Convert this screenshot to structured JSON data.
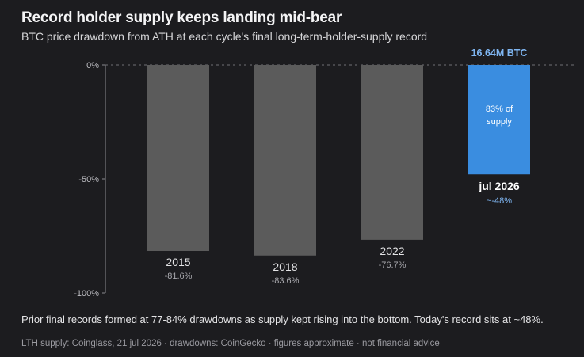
{
  "header": {
    "title": "Record holder supply keeps landing mid-bear",
    "subtitle": "BTC price drawdown from ATH at each cycle's final long-term-holder-supply record"
  },
  "footer": {
    "note": "Prior final records formed at 77-84% drawdowns as supply kept rising into the bottom. Today's record sits at ~48%.",
    "source": "LTH supply: Coinglass, 21 jul 2026 · drawdowns: CoinGecko · figures approximate · not financial advice"
  },
  "colors": {
    "background": "#1c1c1f",
    "historical_bar": "#5b5b5b",
    "current_bar": "#3a8de0",
    "current_label": "#7fb6f2",
    "axis": "#d6d6d8"
  },
  "chart_data": {
    "type": "bar",
    "categories": [
      "2015",
      "2018",
      "2022",
      "jul 2026"
    ],
    "values": [
      -81.6,
      -83.6,
      -76.7,
      -48
    ],
    "value_labels": [
      "-81.6%",
      "-83.6%",
      "-76.7%",
      "~-48%"
    ],
    "highlight_index": 3,
    "highlight_top_label": "16.64M BTC",
    "highlight_inner_label": [
      "83% of",
      "supply"
    ],
    "y_ticks": [
      0,
      -50,
      -100
    ],
    "y_tick_labels": [
      "0%",
      "-50%",
      "-100%"
    ],
    "ylim": [
      -100,
      0
    ],
    "zero_line": "dashed",
    "grid": false,
    "legend": "none"
  }
}
